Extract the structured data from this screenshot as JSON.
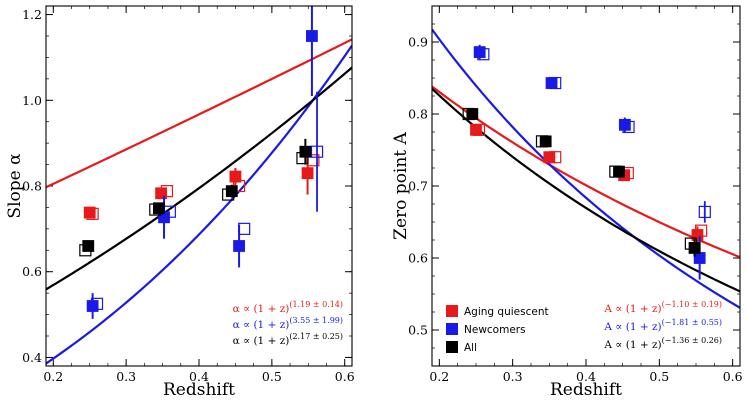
{
  "chart_data": [
    {
      "type": "scatter",
      "panel": "left",
      "xlabel": "Redshift",
      "ylabel": "Slope α",
      "xlim": [
        0.19,
        0.61
      ],
      "ylim": [
        0.38,
        1.22
      ],
      "xticks": [
        0.2,
        0.3,
        0.4,
        0.5,
        0.6
      ],
      "yticks": [
        0.4,
        0.6,
        0.8,
        1.0,
        1.2
      ],
      "xtick_labels": [
        "0.2",
        "0.3",
        "0.4",
        "0.5",
        "0.6"
      ],
      "ytick_labels": [
        "0.4",
        "0.6",
        "0.8",
        "1.0",
        "1.2"
      ],
      "series": [
        {
          "name": "Aging quiescent",
          "color": "#e8191a",
          "filled": [
            {
              "x": 0.25,
              "y": 0.738,
              "err": 0.01
            },
            {
              "x": 0.348,
              "y": 0.783,
              "err": 0.012
            },
            {
              "x": 0.45,
              "y": 0.822,
              "err": 0.02
            },
            {
              "x": 0.549,
              "y": 0.83,
              "err": 0.05
            }
          ],
          "open": [
            {
              "x": 0.254,
              "y": 0.735
            },
            {
              "x": 0.356,
              "y": 0.788
            },
            {
              "x": 0.455,
              "y": 0.8
            },
            {
              "x": 0.557,
              "y": 0.86
            }
          ],
          "fit": {
            "A": 0.648,
            "p": 1.19
          }
        },
        {
          "name": "Newcomers",
          "color": "#1a1ae6",
          "filled": [
            {
              "x": 0.254,
              "y": 0.52,
              "err": 0.03
            },
            {
              "x": 0.352,
              "y": 0.727,
              "err": 0.05
            },
            {
              "x": 0.455,
              "y": 0.66,
              "err": 0.05
            },
            {
              "x": 0.555,
              "y": 1.15,
              "err": 0.14
            }
          ],
          "open": [
            {
              "x": 0.26,
              "y": 0.525
            },
            {
              "x": 0.36,
              "y": 0.74
            },
            {
              "x": 0.462,
              "y": 0.7
            },
            {
              "x": 0.562,
              "y": 0.88,
              "err": 0.14
            }
          ],
          "fit": {
            "A": 0.208,
            "p": 3.55
          }
        },
        {
          "name": "All",
          "color": "#000000",
          "filled": [
            {
              "x": 0.248,
              "y": 0.66,
              "err": 0.01
            },
            {
              "x": 0.345,
              "y": 0.748,
              "err": 0.012
            },
            {
              "x": 0.445,
              "y": 0.788,
              "err": 0.015
            },
            {
              "x": 0.546,
              "y": 0.88,
              "err": 0.03
            }
          ],
          "open": [
            {
              "x": 0.244,
              "y": 0.65
            },
            {
              "x": 0.34,
              "y": 0.745
            },
            {
              "x": 0.44,
              "y": 0.78
            },
            {
              "x": 0.542,
              "y": 0.865
            }
          ],
          "fit": {
            "A": 0.383,
            "p": 2.17
          }
        }
      ],
      "annotations": [
        {
          "pre": "α ∝ (1 + z)",
          "exp": "(1.19 ± 0.14)",
          "color": "#e8191a"
        },
        {
          "pre": "α ∝ (1 + z)",
          "exp": "(3.55 ± 1.99)",
          "color": "#1a1ae6"
        },
        {
          "pre": "α ∝ (1 + z)",
          "exp": "(2.17 ± 0.25)",
          "color": "#000000"
        }
      ]
    },
    {
      "type": "scatter",
      "panel": "right",
      "xlabel": "Redshift",
      "ylabel": "Zero point A",
      "xlim": [
        0.19,
        0.61
      ],
      "ylim": [
        0.45,
        0.95
      ],
      "xticks": [
        0.2,
        0.3,
        0.4,
        0.5,
        0.6
      ],
      "yticks": [
        0.5,
        0.6,
        0.7,
        0.8,
        0.9
      ],
      "xtick_labels": [
        "0.2",
        "0.3",
        "0.4",
        "0.5",
        "0.6"
      ],
      "ytick_labels": [
        "0.5",
        "0.6",
        "0.7",
        "0.8",
        "0.9"
      ],
      "series": [
        {
          "name": "Aging quiescent",
          "color": "#e8191a",
          "filled": [
            {
              "x": 0.25,
              "y": 0.778,
              "err": 0.005
            },
            {
              "x": 0.35,
              "y": 0.74,
              "err": 0.006
            },
            {
              "x": 0.452,
              "y": 0.715,
              "err": 0.008
            },
            {
              "x": 0.552,
              "y": 0.632,
              "err": 0.012
            }
          ],
          "open": [
            {
              "x": 0.254,
              "y": 0.778
            },
            {
              "x": 0.358,
              "y": 0.74
            },
            {
              "x": 0.457,
              "y": 0.718
            },
            {
              "x": 0.557,
              "y": 0.638
            }
          ],
          "fit": {
            "A": 1.015,
            "p": -1.1
          }
        },
        {
          "name": "Newcomers",
          "color": "#1a1ae6",
          "filled": [
            {
              "x": 0.255,
              "y": 0.886,
              "err": 0.01
            },
            {
              "x": 0.353,
              "y": 0.843,
              "err": 0.008
            },
            {
              "x": 0.453,
              "y": 0.785,
              "err": 0.01
            },
            {
              "x": 0.555,
              "y": 0.6,
              "err": 0.03
            }
          ],
          "open": [
            {
              "x": 0.26,
              "y": 0.883
            },
            {
              "x": 0.358,
              "y": 0.843
            },
            {
              "x": 0.458,
              "y": 0.782
            },
            {
              "x": 0.562,
              "y": 0.664,
              "err": 0.015
            }
          ],
          "fit": {
            "A": 1.257,
            "p": -1.81
          }
        },
        {
          "name": "All",
          "color": "#000000",
          "filled": [
            {
              "x": 0.245,
              "y": 0.8,
              "err": 0.005
            },
            {
              "x": 0.345,
              "y": 0.762,
              "err": 0.006
            },
            {
              "x": 0.445,
              "y": 0.72,
              "err": 0.008
            },
            {
              "x": 0.548,
              "y": 0.614,
              "err": 0.012
            }
          ],
          "open": [
            {
              "x": 0.24,
              "y": 0.8
            },
            {
              "x": 0.34,
              "y": 0.762
            },
            {
              "x": 0.44,
              "y": 0.72
            },
            {
              "x": 0.543,
              "y": 0.62
            }
          ],
          "fit": {
            "A": 1.058,
            "p": -1.36
          }
        }
      ],
      "legend": {
        "position": "bottom-left",
        "entries": [
          {
            "label": "Aging quiescent",
            "color": "#e8191a"
          },
          {
            "label": "Newcomers",
            "color": "#1a1ae6"
          },
          {
            "label": "All",
            "color": "#000000"
          }
        ]
      },
      "annotations": [
        {
          "pre": "A ∝ (1 + z)",
          "exp": "(−1.10 ± 0.19)",
          "color": "#e8191a"
        },
        {
          "pre": "A ∝ (1 + z)",
          "exp": "(−1.81 ± 0.55)",
          "color": "#1a1ae6"
        },
        {
          "pre": "A ∝ (1 + z)",
          "exp": "(−1.36 ± 0.26)",
          "color": "#000000"
        }
      ]
    }
  ]
}
